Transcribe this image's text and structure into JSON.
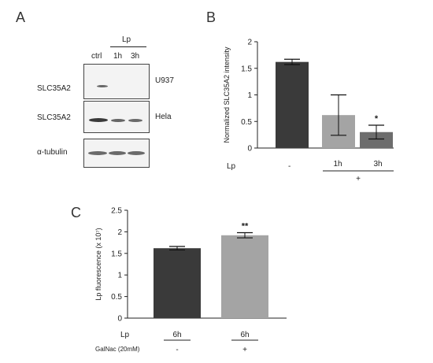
{
  "panel_a": {
    "letter": "A",
    "treatment_label": "Lp",
    "lanes": [
      "ctrl",
      "1h",
      "3h"
    ],
    "blots": [
      {
        "protein": "SLC35A2",
        "cell_line": "U937"
      },
      {
        "protein": "SLC35A2",
        "cell_line": "Hela"
      },
      {
        "protein": "α-tubulin",
        "cell_line": ""
      }
    ]
  },
  "chart_data": [
    {
      "type": "bar",
      "panel": "B",
      "ylabel": "Normalized SLC35A2 intensity",
      "ylim": [
        0,
        2
      ],
      "yticks": [
        "0",
        "0.5",
        "1",
        "1.5",
        "2"
      ],
      "categories": [
        "-",
        "1h",
        "3h"
      ],
      "values": [
        1.62,
        0.62,
        0.3
      ],
      "errors": [
        0.05,
        0.38,
        0.13
      ],
      "bar_colors": [
        "#3a3a3a",
        "#a4a4a4",
        "#6d6d6d"
      ],
      "significance": [
        "",
        "",
        "*"
      ],
      "row_label": "Lp",
      "group_label": "+",
      "grid": false
    },
    {
      "type": "bar",
      "panel": "C",
      "ylabel": "Lp fluorescence (x 10⁷)",
      "ylim": [
        0,
        2.5
      ],
      "yticks": [
        "0",
        "0.5",
        "1",
        "1.5",
        "2",
        "2.5"
      ],
      "categories": [
        "6h",
        "6h"
      ],
      "values": [
        1.62,
        1.92
      ],
      "errors": [
        0.04,
        0.06
      ],
      "bar_colors": [
        "#3a3a3a",
        "#a4a4a4"
      ],
      "significance": [
        "",
        "**"
      ],
      "row1_label": "Lp",
      "row2_label": "GalNac (20mM)",
      "row2_values": [
        "-",
        "+"
      ],
      "grid": false
    }
  ]
}
